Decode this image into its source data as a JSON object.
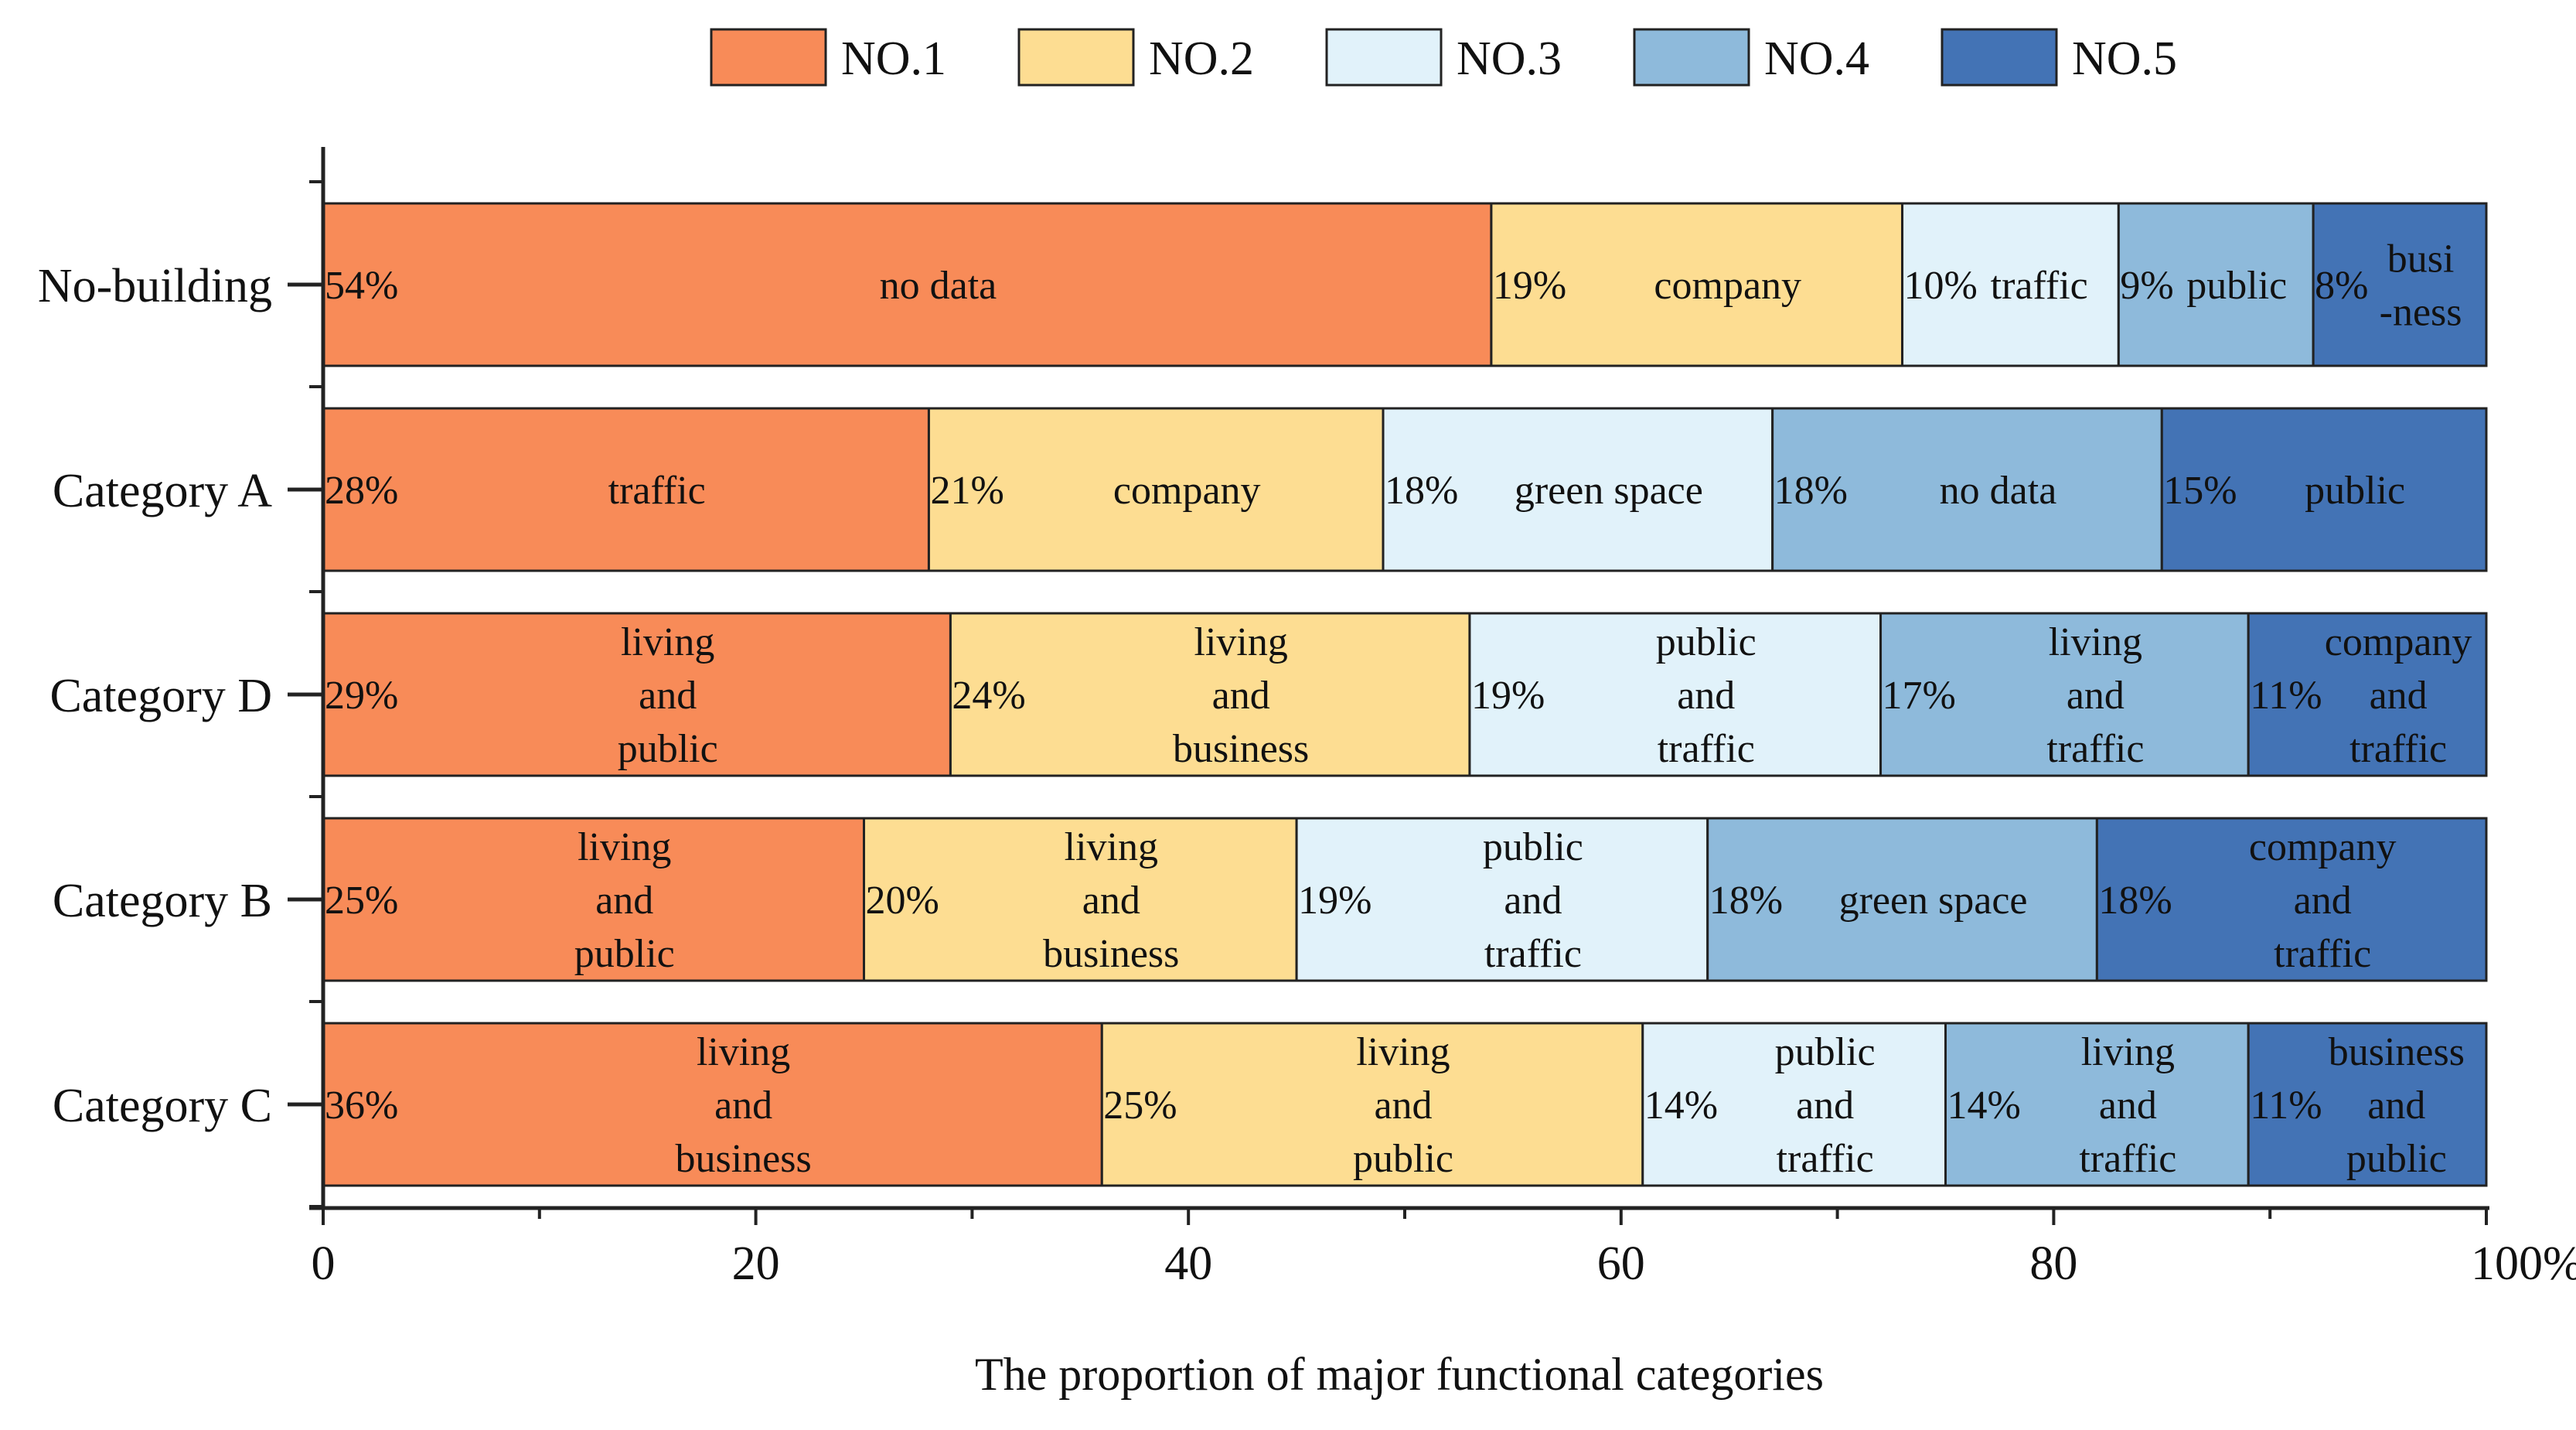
{
  "chart_data": {
    "type": "bar",
    "orientation": "horizontal",
    "stacked": true,
    "xlabel": "The proportion of major functional categories",
    "ylabel": "",
    "xlim": [
      0,
      100
    ],
    "x_ticks": [
      "0",
      "20",
      "40",
      "60",
      "80",
      "100%"
    ],
    "grid": false,
    "legend_position": "top",
    "series": [
      {
        "name": "NO.1",
        "color": "#F88B58"
      },
      {
        "name": "NO.2",
        "color": "#FDDD92"
      },
      {
        "name": "NO.3",
        "color": "#E1F2FA"
      },
      {
        "name": "NO.4",
        "color": "#8EBADB"
      },
      {
        "name": "NO.5",
        "color": "#4373B5"
      }
    ],
    "categories": [
      {
        "name": "No-building",
        "segments": [
          {
            "value": 54,
            "pct": "54%",
            "label": [
              "no data"
            ]
          },
          {
            "value": 19,
            "pct": "19%",
            "label": [
              "company"
            ]
          },
          {
            "value": 10,
            "pct": "10%",
            "label": [
              "traffic"
            ]
          },
          {
            "value": 9,
            "pct": "9%",
            "label": [
              "public"
            ]
          },
          {
            "value": 8,
            "pct": "8%",
            "label": [
              "busi",
              "-ness"
            ]
          }
        ]
      },
      {
        "name": "Category A",
        "segments": [
          {
            "value": 28,
            "pct": "28%",
            "label": [
              "traffic"
            ]
          },
          {
            "value": 21,
            "pct": "21%",
            "label": [
              "company"
            ]
          },
          {
            "value": 18,
            "pct": "18%",
            "label": [
              "green space"
            ]
          },
          {
            "value": 18,
            "pct": "18%",
            "label": [
              "no data"
            ]
          },
          {
            "value": 15,
            "pct": "15%",
            "label": [
              "public"
            ]
          }
        ]
      },
      {
        "name": "Category D",
        "segments": [
          {
            "value": 29,
            "pct": "29%",
            "label": [
              "living",
              "and",
              "public"
            ]
          },
          {
            "value": 24,
            "pct": "24%",
            "label": [
              "living",
              "and",
              "business"
            ]
          },
          {
            "value": 19,
            "pct": "19%",
            "label": [
              "public",
              "and",
              "traffic"
            ]
          },
          {
            "value": 17,
            "pct": "17%",
            "label": [
              "living",
              "and",
              "traffic"
            ]
          },
          {
            "value": 11,
            "pct": "11%",
            "label": [
              "company",
              "and",
              "traffic"
            ]
          }
        ]
      },
      {
        "name": "Category B",
        "segments": [
          {
            "value": 25,
            "pct": "25%",
            "label": [
              "living",
              "and",
              "public"
            ]
          },
          {
            "value": 20,
            "pct": "20%",
            "label": [
              "living",
              "and",
              "business"
            ]
          },
          {
            "value": 19,
            "pct": "19%",
            "label": [
              "public",
              "and",
              "traffic"
            ]
          },
          {
            "value": 18,
            "pct": "18%",
            "label": [
              "green space"
            ]
          },
          {
            "value": 18,
            "pct": "18%",
            "label": [
              "company",
              "and",
              "traffic"
            ]
          }
        ]
      },
      {
        "name": "Category C",
        "segments": [
          {
            "value": 36,
            "pct": "36%",
            "label": [
              "living",
              "and",
              "business"
            ]
          },
          {
            "value": 25,
            "pct": "25%",
            "label": [
              "living",
              "and",
              "public"
            ]
          },
          {
            "value": 14,
            "pct": "14%",
            "label": [
              "public",
              "and",
              "traffic"
            ]
          },
          {
            "value": 14,
            "pct": "14%",
            "label": [
              "living",
              "and",
              "traffic"
            ]
          },
          {
            "value": 11,
            "pct": "11%",
            "label": [
              "business",
              "and",
              "public"
            ]
          }
        ]
      }
    ]
  }
}
